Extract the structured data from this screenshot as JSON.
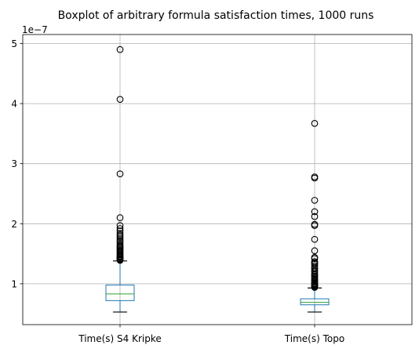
{
  "chart_data": {
    "type": "boxplot",
    "title": "Boxplot of arbitrary formula satisfaction times, 1000 runs",
    "xlabel": "",
    "ylabel": "",
    "y_scale_label": "1e−7",
    "y_scale": 1e-07,
    "ylim": [
      0.32,
      5.15
    ],
    "yticks": [
      1,
      2,
      3,
      4,
      5
    ],
    "ytick_labels": [
      "1",
      "2",
      "3",
      "4",
      "5"
    ],
    "grid": true,
    "categories": [
      "Time(s) S4 Kripke",
      "Time(s) Topo"
    ],
    "series": [
      {
        "name": "Time(s) S4 Kripke",
        "min": 0.53,
        "q1": 0.72,
        "median": 0.83,
        "q3": 0.98,
        "max": 1.38,
        "outliers": [
          4.9,
          4.07,
          2.83,
          2.1,
          1.97,
          1.92,
          1.88,
          1.84,
          1.81,
          1.78,
          1.75,
          1.72,
          1.7,
          1.67,
          1.64,
          1.62,
          1.6,
          1.58,
          1.56,
          1.54,
          1.52,
          1.5,
          1.48,
          1.46,
          1.45,
          1.44,
          1.42,
          1.41,
          1.4,
          1.39
        ]
      },
      {
        "name": "Time(s) Topo",
        "min": 0.53,
        "q1": 0.65,
        "median": 0.69,
        "q3": 0.75,
        "max": 0.93,
        "outliers": [
          3.67,
          2.78,
          2.76,
          2.39,
          2.2,
          2.12,
          1.99,
          1.97,
          1.74,
          1.55,
          1.44,
          1.42,
          1.37,
          1.35,
          1.33,
          1.3,
          1.27,
          1.25,
          1.22,
          1.2,
          1.17,
          1.15,
          1.13,
          1.11,
          1.09,
          1.07,
          1.06,
          1.04,
          1.03,
          1.01,
          1.0,
          0.99,
          0.98,
          0.97,
          0.96,
          0.95,
          0.94
        ]
      }
    ],
    "colors": {
      "box": "#1f77b4",
      "median": "#2ca02c",
      "whisker": "#000000",
      "grid": "#b0b0b0",
      "flier": "#000000"
    }
  }
}
